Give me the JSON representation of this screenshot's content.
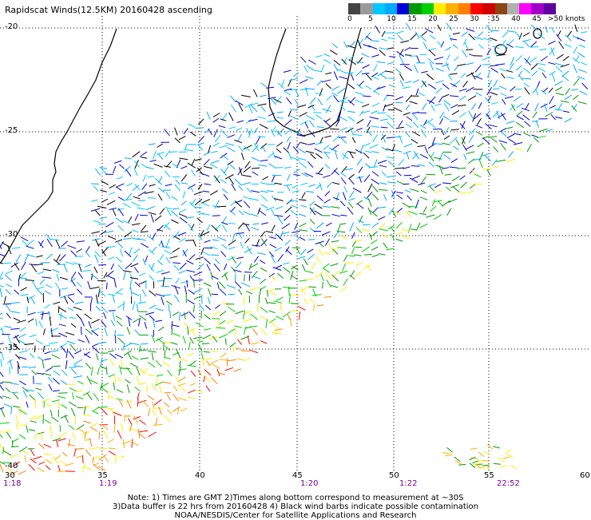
{
  "title": "Rapidscat Winds(12.5KM) 20160428 ascending",
  "legend": {
    "colors": [
      "#444444",
      "#9a9a9a",
      "#00c8ff",
      "#00aaff",
      "#0000d8",
      "#009a00",
      "#00d000",
      "#ffee00",
      "#ffb000",
      "#ff8000",
      "#ff0000",
      "#d00000",
      "#8b4513",
      "#b0b0b0",
      "#ff00ff",
      "#a000c8",
      "#6000a0"
    ],
    "labels": [
      "0",
      "5",
      "10",
      "15",
      "20",
      "25",
      "30",
      "35",
      "40",
      "45",
      ">50 knots"
    ]
  },
  "lat_labels": [
    "-20",
    "-25",
    "-30",
    "-35",
    "-40"
  ],
  "lon_labels": [
    "30",
    "35",
    "40",
    "45",
    "50",
    "55",
    "60"
  ],
  "time_labels": [
    "1:18",
    "1:19",
    "1:20",
    "1:22",
    "22:52"
  ],
  "notes": [
    "Note: 1) Times are GMT 2)Times along bottom correspond to measurement at ~30S",
    "3)Data buffer is 22 hrs from 20160428 4) Black wind barbs indicate possible contamination",
    "NOAA/NESDIS/Center for Satellite Applications and Research"
  ]
}
